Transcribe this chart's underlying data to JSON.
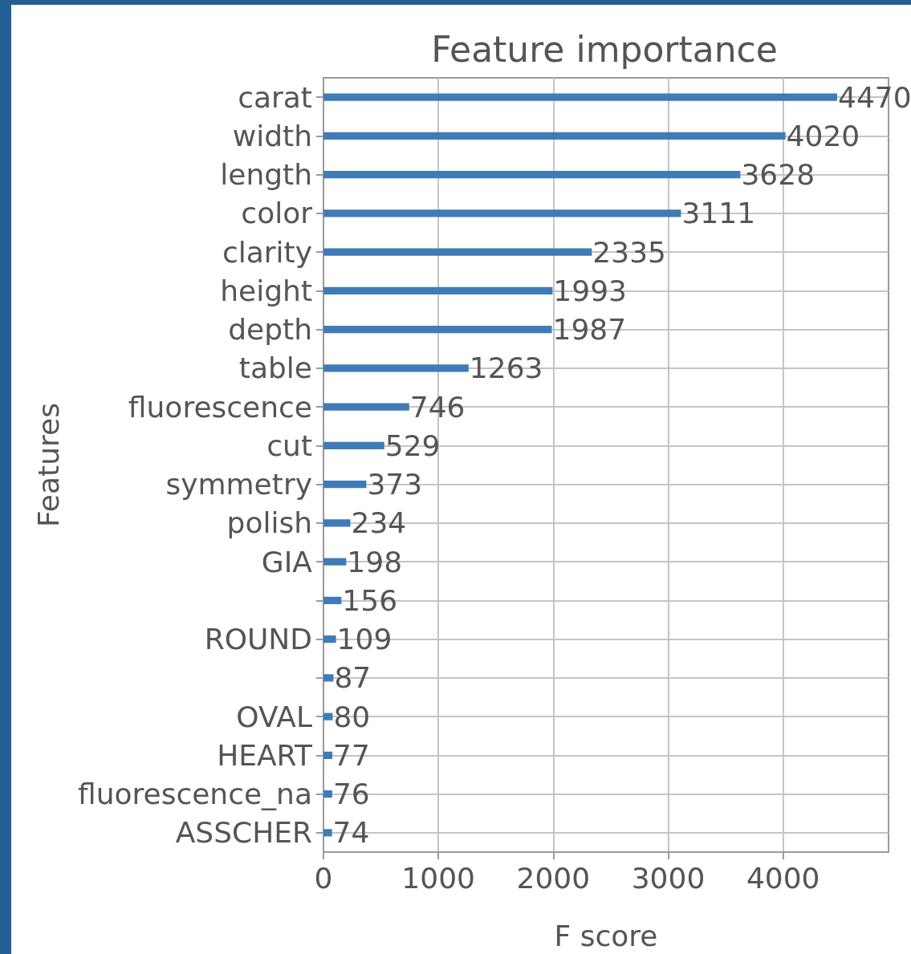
{
  "chart_data": {
    "type": "bar",
    "orientation": "horizontal",
    "title": "Feature importance",
    "xlabel": "F score",
    "ylabel": "Features",
    "categories": [
      "carat",
      "width",
      "length",
      "color",
      "clarity",
      "height",
      "depth",
      "table",
      "fluorescence",
      "cut",
      "symmetry",
      "polish",
      "GIA",
      null,
      "ROUND",
      null,
      "OVAL",
      "HEART",
      "fluorescence_na",
      "ASSCHER"
    ],
    "values": [
      4470,
      4020,
      3628,
      3111,
      2335,
      1993,
      1987,
      1263,
      746,
      529,
      373,
      234,
      198,
      156,
      109,
      87,
      80,
      77,
      76,
      74
    ],
    "color": "#3f7bb6",
    "xlim": [
      0,
      4917
    ],
    "xticks": [
      0,
      1000,
      2000,
      3000,
      4000
    ],
    "grid": true,
    "data_labels": true
  }
}
